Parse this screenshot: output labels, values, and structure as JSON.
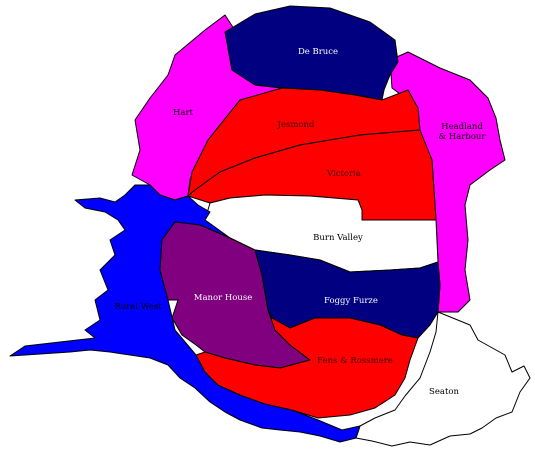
{
  "map": {
    "wards": [
      {
        "key": "de_bruce",
        "name": "De Bruce",
        "color": "#000080"
      },
      {
        "key": "hart",
        "name": "Hart",
        "color": "#ff00ff"
      },
      {
        "key": "jesmond",
        "name": "Jesmond",
        "color": "#ff0000"
      },
      {
        "key": "headland",
        "name_line1": "Headland",
        "name_line2": "& Harbour",
        "color": "#ff00ff"
      },
      {
        "key": "victoria",
        "name": "Victoria",
        "color": "#ff0000"
      },
      {
        "key": "burn_valley",
        "name": "Burn Valley",
        "color": "#ffffff"
      },
      {
        "key": "rural_west",
        "name": "Rural West",
        "color": "#0000ff"
      },
      {
        "key": "manor_house",
        "name": "Manor House",
        "color": "#800080"
      },
      {
        "key": "foggy_furze",
        "name": "Foggy Furze",
        "color": "#000080"
      },
      {
        "key": "fens_rossmere",
        "name": "Fens & Rossmere",
        "color": "#ff0000"
      },
      {
        "key": "seaton",
        "name": "Seaton",
        "color": "#ffffff"
      }
    ]
  }
}
